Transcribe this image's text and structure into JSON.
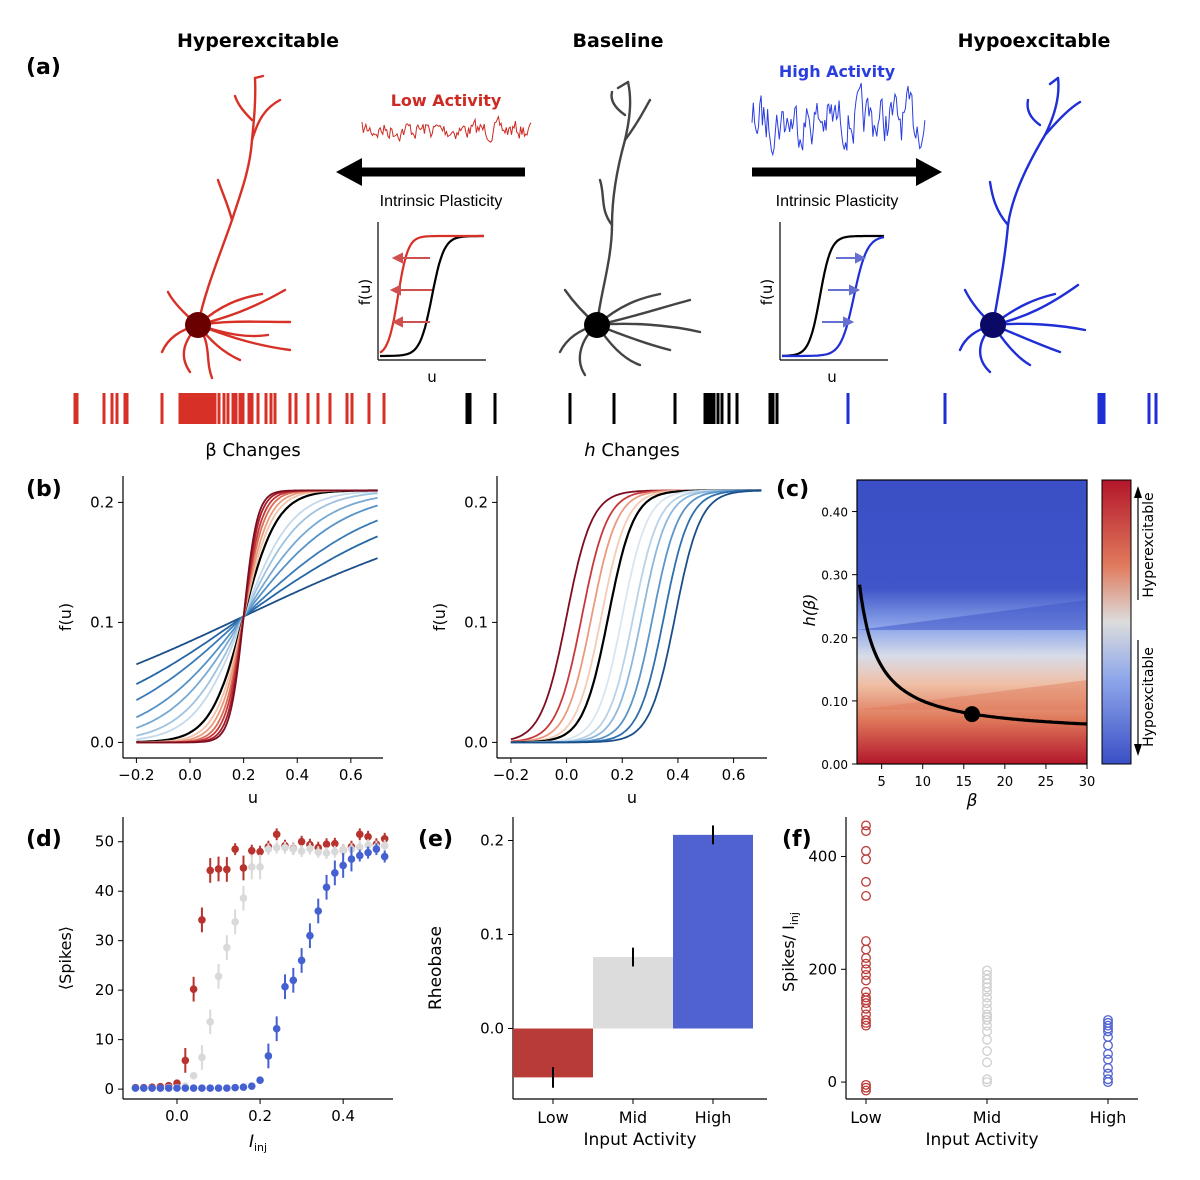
{
  "panel_labels": {
    "a": "(a)",
    "b": "(b)",
    "c": "(c)",
    "d": "(d)",
    "e": "(e)",
    "f": "(f)"
  },
  "panel_a": {
    "title_left": "Hyperexcitable",
    "title_center": "Baseline",
    "title_right": "Hypoexcitable",
    "low_activity": "Low Activity",
    "high_activity": "High Activity",
    "plasticity_left": "Intrinsic Plasticity",
    "plasticity_right": "Intrinsic Plasticity",
    "inset_ylabel": "f(u)",
    "inset_xlabel": "u",
    "colors": {
      "hyper": "#d73027",
      "baseline": "#444444",
      "hypo": "#1f2ed6",
      "noise_low": "#cc2a22",
      "noise_high": "#2a3ee0"
    }
  },
  "chart_data": [
    {
      "id": "b-left",
      "type": "line",
      "title": "β Changes",
      "xlabel": "u",
      "ylabel": "f(u)",
      "xlim": [
        -0.25,
        0.72
      ],
      "ylim": [
        -0.013,
        0.222
      ],
      "xticks": [
        -0.2,
        0.0,
        0.2,
        0.4,
        0.6
      ],
      "xtick_labels": [
        "−0.2",
        "0.0",
        "0.2",
        "0.4",
        "0.6"
      ],
      "yticks": [
        0.0,
        0.1,
        0.2
      ],
      "ytick_labels": [
        "0.0",
        "0.1",
        "0.2"
      ],
      "function": "0.21/(1+exp(-beta*(u-0.2)))",
      "series_param": "beta",
      "series": [
        {
          "beta": 2,
          "color": "#1b4f8a"
        },
        {
          "beta": 3,
          "color": "#2466a4"
        },
        {
          "beta": 4,
          "color": "#3a7ab8"
        },
        {
          "beta": 5.5,
          "color": "#5592c6"
        },
        {
          "beta": 7,
          "color": "#77a9d3"
        },
        {
          "beta": 9,
          "color": "#9fc2e0"
        },
        {
          "beta": 11,
          "color": "#c4d9ec"
        },
        {
          "beta": 16,
          "color": "#000000"
        },
        {
          "beta": 19,
          "color": "#f3c3a8"
        },
        {
          "beta": 22,
          "color": "#ea9a7d"
        },
        {
          "beta": 26,
          "color": "#dd6c55"
        },
        {
          "beta": 30,
          "color": "#c8383a"
        },
        {
          "beta": 35,
          "color": "#a61d2b"
        },
        {
          "beta": 40,
          "color": "#7d0d1f"
        }
      ]
    },
    {
      "id": "b-right",
      "type": "line",
      "title": "h Changes",
      "title_prefix": "h",
      "title_suffix": " Changes",
      "xlabel": "u",
      "ylabel": "f(u)",
      "xlim": [
        -0.25,
        0.72
      ],
      "ylim": [
        -0.013,
        0.222
      ],
      "xticks": [
        -0.2,
        0.0,
        0.2,
        0.4,
        0.6
      ],
      "xtick_labels": [
        "−0.2",
        "0.0",
        "0.2",
        "0.4",
        "0.6"
      ],
      "yticks": [
        0.0,
        0.1,
        0.2
      ],
      "ytick_labels": [
        "0.0",
        "0.1",
        "0.2"
      ],
      "function": "0.21/(1+exp(-16*(u-h)))",
      "series_param": "h",
      "series": [
        {
          "h": 0.0,
          "color": "#7d0d1f"
        },
        {
          "h": 0.055,
          "color": "#c8383a"
        },
        {
          "h": 0.09,
          "color": "#ea9a7d"
        },
        {
          "h": 0.125,
          "color": "#f4cbb4"
        },
        {
          "h": 0.15,
          "color": "#000000"
        },
        {
          "h": 0.2,
          "color": "#d9e5f0"
        },
        {
          "h": 0.24,
          "color": "#b8d2e8"
        },
        {
          "h": 0.27,
          "color": "#8db8dc"
        },
        {
          "h": 0.31,
          "color": "#5a95c7"
        },
        {
          "h": 0.35,
          "color": "#2f6fae"
        },
        {
          "h": 0.39,
          "color": "#1b4f8a"
        }
      ]
    },
    {
      "id": "c",
      "type": "heatmap",
      "xlabel": "β",
      "ylabel": "h(β)",
      "xlim": [
        2,
        30
      ],
      "ylim": [
        0,
        0.45
      ],
      "xticks": [
        5,
        10,
        15,
        20,
        25,
        30
      ],
      "xtick_labels": [
        "5",
        "10",
        "15",
        "20",
        "25",
        "30"
      ],
      "yticks": [
        0.0,
        0.1,
        0.2,
        0.3,
        0.4
      ],
      "ytick_labels": [
        "0.00",
        "0.10",
        "0.20",
        "0.30",
        "0.40"
      ],
      "curve": {
        "function": "0.2 + (0.05 - 0.2) * 16 / beta ... approx h = 0.045 + 0.53/beta",
        "marker": [
          16,
          0.079
        ]
      },
      "colorbar": {
        "top_label": "Hyperexcitable",
        "bottom_label": "Hypoexcitable"
      }
    },
    {
      "id": "d",
      "type": "scatter",
      "xlabel_main": "I",
      "xlabel_sub": "inj",
      "ylabel": "⟨Spikes⟩",
      "xlim": [
        -0.13,
        0.52
      ],
      "ylim": [
        -2,
        55
      ],
      "xticks": [
        0.0,
        0.2,
        0.4
      ],
      "xtick_labels": [
        "0.0",
        "0.2",
        "0.4"
      ],
      "yticks": [
        0,
        10,
        20,
        30,
        40,
        50
      ],
      "ytick_labels": [
        "0",
        "10",
        "20",
        "30",
        "40",
        "50"
      ],
      "series": [
        {
          "name": "Low",
          "color": "#b8322e",
          "x": [
            -0.1,
            -0.08,
            -0.06,
            -0.04,
            -0.02,
            0.0,
            0.02,
            0.04,
            0.06,
            0.08,
            0.1,
            0.12,
            0.14,
            0.16,
            0.18,
            0.2,
            0.22,
            0.24,
            0.26,
            0.28,
            0.3,
            0.32,
            0.34,
            0.36,
            0.38,
            0.4,
            0.42,
            0.44,
            0.46,
            0.48,
            0.5
          ],
          "y": [
            0.3,
            0.3,
            0.4,
            0.5,
            0.7,
            1.2,
            5.8,
            20.2,
            34.2,
            44.2,
            44.5,
            44.4,
            48.5,
            44.7,
            48.2,
            48.0,
            49.0,
            51.5,
            49.2,
            48.6,
            50.0,
            49.4,
            48.8,
            49.5,
            49.6,
            48.3,
            49.0,
            51.5,
            51.0,
            49.5,
            50.6
          ]
        },
        {
          "name": "Mid",
          "color": "#d9d9d9",
          "x": [
            -0.1,
            -0.08,
            -0.06,
            -0.04,
            -0.02,
            0.0,
            0.02,
            0.04,
            0.06,
            0.08,
            0.1,
            0.12,
            0.14,
            0.16,
            0.18,
            0.2,
            0.22,
            0.24,
            0.26,
            0.28,
            0.3,
            0.32,
            0.34,
            0.36,
            0.38,
            0.4,
            0.42,
            0.44,
            0.46,
            0.48,
            0.5
          ],
          "y": [
            0.2,
            0.2,
            0.2,
            0.2,
            0.3,
            0.3,
            0.6,
            2.7,
            6.4,
            13.6,
            22.8,
            28.6,
            33.8,
            38.6,
            44.9,
            44.9,
            48.5,
            48.8,
            48.8,
            48.5,
            48.1,
            48.6,
            47.9,
            47.7,
            48.0,
            48.3,
            48.5,
            48.9,
            49.3,
            49.0,
            49.2
          ]
        },
        {
          "name": "High",
          "color": "#4560d0",
          "x": [
            -0.1,
            -0.08,
            -0.06,
            -0.04,
            -0.02,
            0.0,
            0.02,
            0.04,
            0.06,
            0.08,
            0.1,
            0.12,
            0.14,
            0.16,
            0.18,
            0.2,
            0.22,
            0.24,
            0.26,
            0.28,
            0.3,
            0.32,
            0.34,
            0.36,
            0.38,
            0.4,
            0.42,
            0.44,
            0.46,
            0.48,
            0.5
          ],
          "y": [
            0.2,
            0.2,
            0.2,
            0.2,
            0.2,
            0.2,
            0.2,
            0.2,
            0.2,
            0.2,
            0.2,
            0.2,
            0.3,
            0.4,
            0.6,
            1.8,
            6.7,
            12.2,
            20.7,
            22.0,
            26.0,
            31.0,
            36.0,
            40.8,
            43.7,
            45.2,
            46.5,
            47.2,
            47.8,
            48.5,
            47.0
          ]
        }
      ]
    },
    {
      "id": "e",
      "type": "bar",
      "xlabel": "Input Activity",
      "ylabel": "Rheobase",
      "categories": [
        "Low",
        "Mid",
        "High"
      ],
      "values": [
        -0.052,
        0.076,
        0.206
      ],
      "errors": [
        0.011,
        0.01,
        0.01
      ],
      "colors": [
        "#b93b38",
        "#dcdcdc",
        "#4f62cf"
      ],
      "ylim": [
        -0.075,
        0.225
      ],
      "yticks": [
        0.0,
        0.1,
        0.2
      ],
      "ytick_labels": [
        "0.0",
        "0.1",
        "0.2"
      ]
    },
    {
      "id": "f",
      "type": "scatter",
      "xlabel": "Input Activity",
      "ylabel_main": "Spikes/ I",
      "ylabel_sub": "inj",
      "categories": [
        "Low",
        "Mid",
        "High"
      ],
      "ylim": [
        -30,
        470
      ],
      "yticks": [
        0,
        200,
        400
      ],
      "ytick_labels": [
        "0",
        "200",
        "400"
      ],
      "series": [
        {
          "name": "Low",
          "color": "#b93b38",
          "values": [
            455,
            445,
            410,
            395,
            355,
            330,
            250,
            235,
            220,
            210,
            200,
            190,
            180,
            160,
            150,
            145,
            140,
            130,
            120,
            110,
            105,
            100,
            -5,
            -10,
            -15
          ]
        },
        {
          "name": "Mid",
          "color": "#cfcfcf",
          "values": [
            198,
            190,
            182,
            175,
            168,
            160,
            150,
            140,
            130,
            120,
            115,
            110,
            100,
            90,
            75,
            55,
            35,
            5,
            0
          ]
        },
        {
          "name": "High",
          "color": "#4f62cf",
          "values": [
            110,
            105,
            100,
            95,
            90,
            80,
            65,
            50,
            40,
            25,
            15,
            5,
            0
          ]
        }
      ]
    }
  ]
}
